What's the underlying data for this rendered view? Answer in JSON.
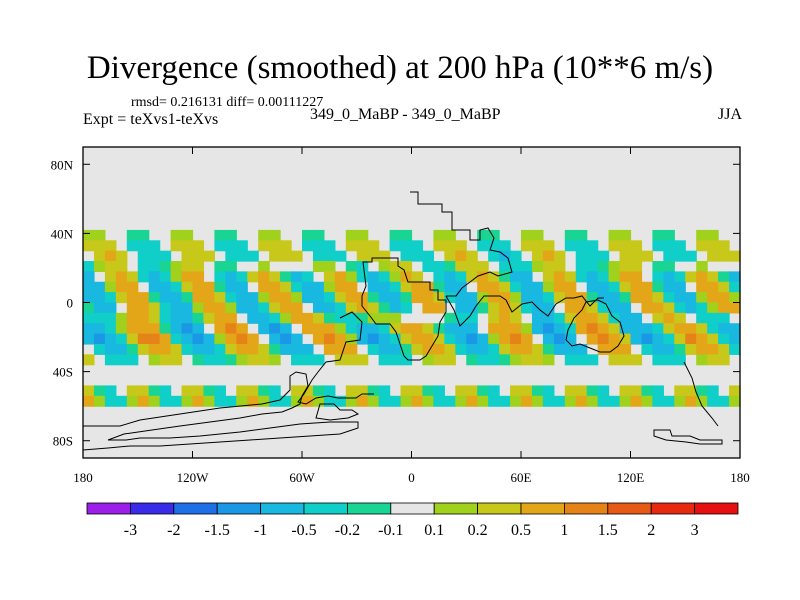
{
  "chart_data": {
    "type": "heatmap",
    "title": "Divergence (smoothed) at 200 hPa (10**6 m/s)",
    "stats_label": "rmsd= 0.216131 diff= 0.00111227",
    "experiment_label": "Expt = teXvs1-teXvs",
    "comparison_label": "349_0_MaBP - 349_0_MaBP",
    "season_label": "JJA",
    "x_range": [
      -180,
      180
    ],
    "y_range": [
      -90,
      90
    ],
    "x_ticks": [
      {
        "value": -180,
        "label": "180"
      },
      {
        "value": -120,
        "label": "120W"
      },
      {
        "value": -60,
        "label": "60W"
      },
      {
        "value": 0,
        "label": "0"
      },
      {
        "value": 60,
        "label": "60E"
      },
      {
        "value": 120,
        "label": "120E"
      },
      {
        "value": 180,
        "label": "180"
      }
    ],
    "y_ticks": [
      {
        "value": 80,
        "label": "80N"
      },
      {
        "value": 40,
        "label": "40N"
      },
      {
        "value": 0,
        "label": "0"
      },
      {
        "value": -40,
        "label": "40S"
      },
      {
        "value": -80,
        "label": "80S"
      }
    ],
    "colorbar": {
      "labels": [
        "-3",
        "-2",
        "-1.5",
        "-1",
        "-0.5",
        "-0.2",
        "-0.1",
        "0.1",
        "0.2",
        "0.5",
        "1",
        "1.5",
        "2",
        "3"
      ],
      "colors": [
        "#9b1fe8",
        "#3a2be8",
        "#1f6fe6",
        "#1a98e6",
        "#19b8e0",
        "#10cec8",
        "#1ad494",
        "#e6e6e6",
        "#9fd11d",
        "#c8c81a",
        "#e3a619",
        "#e68318",
        "#e65a15",
        "#e52a10",
        "#e61010"
      ]
    },
    "anomaly_bands": [
      {
        "lat_center": 30,
        "lat_width": 9,
        "amplitude": 0.5,
        "period_deg": 48,
        "phase": 10
      },
      {
        "lat_center": 5,
        "lat_width": 14,
        "amplitude": 1.0,
        "period_deg": 40,
        "phase": 0
      },
      {
        "lat_center": -20,
        "lat_width": 12,
        "amplitude": 1.1,
        "period_deg": 50,
        "phase": 25
      },
      {
        "lat_center": -55,
        "lat_width": 5,
        "amplitude": 0.6,
        "period_deg": 30,
        "phase": 5
      }
    ]
  }
}
